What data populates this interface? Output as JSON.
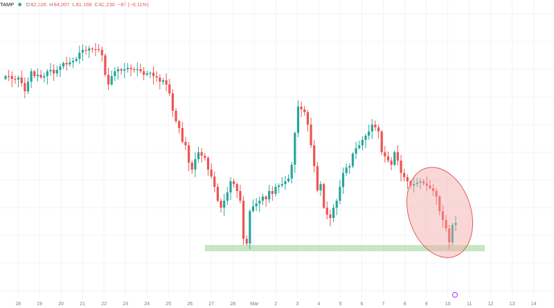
{
  "legend": {
    "symbol": "TAMP",
    "open_label": "O",
    "open": "82,326",
    "high_label": "H",
    "high": "84,007",
    "low_label": "L",
    "low": "81,168",
    "close_label": "C",
    "close": "82,230",
    "change": "−87 (−0.11%)"
  },
  "chart_data": {
    "type": "candlestick",
    "x_tick_labels": [
      "18",
      "19",
      "20",
      "21",
      "22",
      "23",
      "24",
      "25",
      "26",
      "27",
      "28",
      "Mar",
      "2",
      "3",
      "4",
      "5",
      "6",
      "7",
      "8",
      "9",
      "10",
      "11",
      "12",
      "13",
      "14"
    ],
    "colors": {
      "up": "#26a69a",
      "down": "#ef5350",
      "support_zone": "#b7e1b4",
      "highlight_fill": "#f4a6a6",
      "highlight_stroke": "#e05a55"
    },
    "grid": true,
    "annotations": [
      "support-zone-rectangle",
      "highlight-ellipse"
    ]
  }
}
